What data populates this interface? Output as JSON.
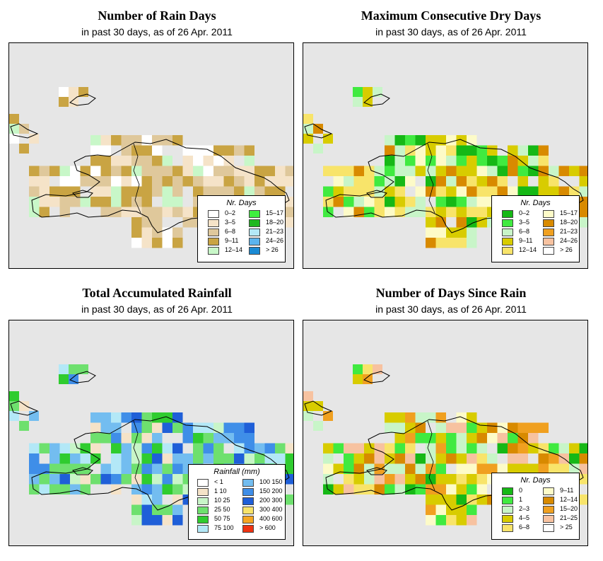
{
  "panels": [
    {
      "title": "Number of Rain Days",
      "subtitle": "in past 30 days, as of  26 Apr. 2011",
      "legend": {
        "title": "Nr. Days",
        "items": [
          {
            "label": "0–2",
            "color": "#ffffff"
          },
          {
            "label": "3–5",
            "color": "#f5e3c8"
          },
          {
            "label": "6–8",
            "color": "#dfc89b"
          },
          {
            "label": "9–11",
            "color": "#c9a443"
          },
          {
            "label": "12–14",
            "color": "#c8f7c8"
          },
          {
            "label": "15–17",
            "color": "#3fef3f"
          },
          {
            "label": "18–20",
            "color": "#1fb81f"
          },
          {
            "label": "21–23",
            "color": "#b3e8f7"
          },
          {
            "label": "24–26",
            "color": "#5bb4ee"
          },
          {
            "label": "> 26",
            "color": "#1a8ad4"
          }
        ]
      }
    },
    {
      "title": "Maximum Consecutive Dry Days",
      "subtitle": "in past 30 days, as of  26 Apr. 2011",
      "legend": {
        "title": "Nr. Days",
        "items": [
          {
            "label": "0–2",
            "color": "#16b816"
          },
          {
            "label": "3–5",
            "color": "#40ea40"
          },
          {
            "label": "6–8",
            "color": "#c8f5c8"
          },
          {
            "label": "9–11",
            "color": "#d8cc00"
          },
          {
            "label": "12–14",
            "color": "#f8e46a"
          },
          {
            "label": "15–17",
            "color": "#fdfbc8"
          },
          {
            "label": "18–20",
            "color": "#d88a00"
          },
          {
            "label": "21–23",
            "color": "#f0a020"
          },
          {
            "label": "24–26",
            "color": "#f7c2a0"
          },
          {
            "label": "> 26",
            "color": "#ffffff"
          }
        ]
      }
    },
    {
      "title": "Total Accumulated Rainfall",
      "subtitle": "in past 30 days, as of  26 Apr. 2011",
      "legend": {
        "title": "Rainfall (mm)",
        "items": [
          {
            "label": "< 1",
            "color": "#ffffff"
          },
          {
            "label": "1    10",
            "color": "#f5e3c8"
          },
          {
            "label": "10    25",
            "color": "#c8f5c8"
          },
          {
            "label": "25    50",
            "color": "#6ee06e"
          },
          {
            "label": "50    75",
            "color": "#2fcc2f"
          },
          {
            "label": "75   100",
            "color": "#b3e8f7"
          },
          {
            "label": "100  150",
            "color": "#73bdf0"
          },
          {
            "label": "150  200",
            "color": "#3f8ee8"
          },
          {
            "label": "200  300",
            "color": "#1f5fd8"
          },
          {
            "label": "300  400",
            "color": "#f7e36a"
          },
          {
            "label": "400  600",
            "color": "#f5a623"
          },
          {
            "label": "> 600",
            "color": "#ee3311"
          }
        ]
      }
    },
    {
      "title": "Number of Days Since Rain",
      "subtitle": "in past 30 days, as of  26 Apr. 2011",
      "legend": {
        "title": "Nr. Days",
        "items": [
          {
            "label": "0",
            "color": "#16b816"
          },
          {
            "label": "1",
            "color": "#40ea40"
          },
          {
            "label": "2–3",
            "color": "#c8f5c8"
          },
          {
            "label": "4–5",
            "color": "#d8cc00"
          },
          {
            "label": "6–8",
            "color": "#f8e46a"
          },
          {
            "label": "9–11",
            "color": "#fdfbc8"
          },
          {
            "label": "12–14",
            "color": "#d88a00"
          },
          {
            "label": "15–20",
            "color": "#f0a020"
          },
          {
            "label": "21–25",
            "color": "#f7c2a0"
          },
          {
            "label": "> 25",
            "color": "#ffffff"
          }
        ]
      }
    }
  ]
}
